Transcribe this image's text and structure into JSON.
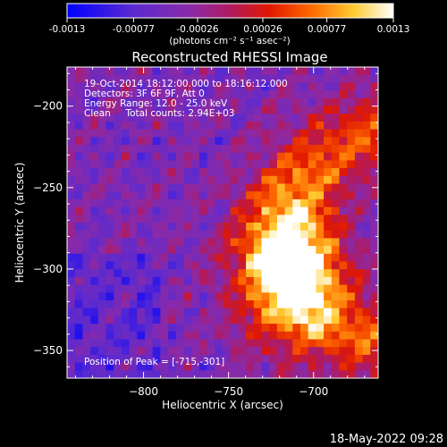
{
  "chart_data": {
    "type": "heatmap",
    "title": "Reconstructed RHESSI Image",
    "xlabel": "Heliocentric X (arcsec)",
    "ylabel": "Heliocentric Y (arcsec)",
    "xlim": [
      -845,
      -662
    ],
    "ylim": [
      -367,
      -176
    ],
    "xticks": [
      -800,
      -750,
      -700
    ],
    "yticks": [
      -200,
      -250,
      -300,
      -350
    ],
    "colorbar": {
      "ticks": [
        "-0.0013",
        "-0.00077",
        "-0.00026",
        "0.00026",
        "0.00077",
        "0.0013"
      ],
      "unit_label": "(photons cm⁻² s⁻¹ asec⁻²)",
      "range": [
        -0.0013,
        0.0013
      ]
    },
    "annotations": [
      "19-Oct-2014 18:12:00.000 to 18:16:12.000",
      "Detectors: 3F 6F 9F, Att 0",
      "Energy Range: 12.0 - 25.0 keV",
      "Clean     Total counts: 2.94E+03"
    ],
    "peak_label": "Position of Peak = [-715,-301]",
    "peak": [
      -715,
      -301
    ],
    "grid": false
  },
  "timestamp": "18-May-2022 09:28",
  "colors": {
    "background": "#000000",
    "text": "#ffffff",
    "colormap": [
      "#0000ff",
      "#6633cc",
      "#aa2288",
      "#cc0000",
      "#ff5500",
      "#ff9900",
      "#ffee66",
      "#ffffff"
    ]
  }
}
